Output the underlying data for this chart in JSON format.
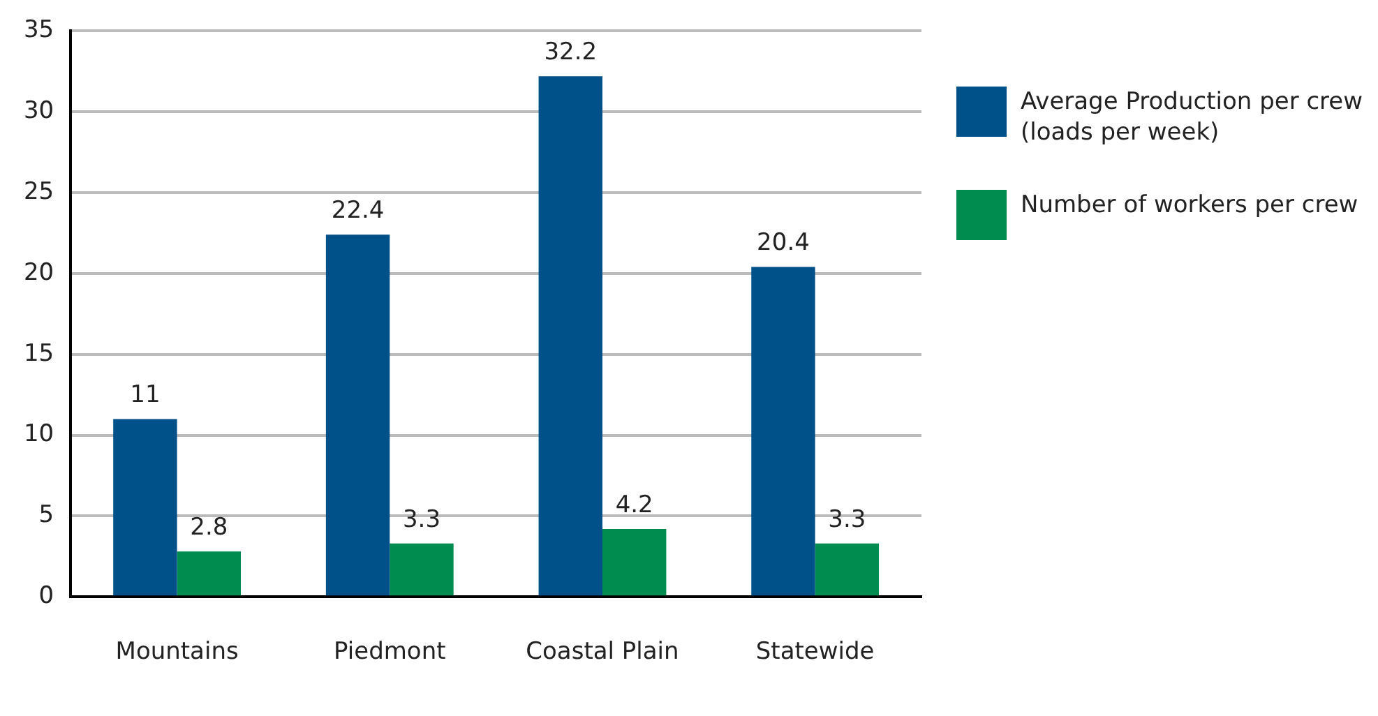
{
  "chart_data": {
    "type": "bar",
    "categories": [
      "Mountains",
      "Piedmont",
      "Coastal Plain",
      "Statewide"
    ],
    "series": [
      {
        "name": "Average Production per crew (loads per week)",
        "color": "#00508a",
        "values": [
          11,
          22.4,
          32.2,
          20.4
        ]
      },
      {
        "name": "Number of workers per crew",
        "color": "#008c4f",
        "values": [
          2.8,
          3.3,
          4.2,
          3.3
        ]
      }
    ],
    "ylim": [
      0,
      35
    ],
    "yticks": [
      0,
      5,
      10,
      15,
      20,
      25,
      30,
      35
    ],
    "grid": "y",
    "legend": "right",
    "data_labels": true
  }
}
